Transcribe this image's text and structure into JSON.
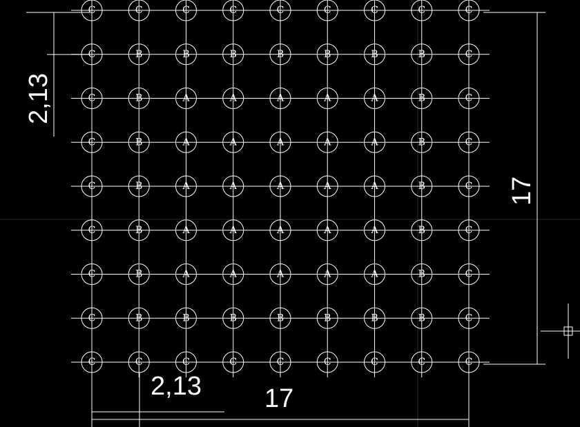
{
  "pile_grid": {
    "rows": [
      [
        "C",
        "C",
        "C",
        "C",
        "C",
        "C",
        "C",
        "C",
        "C"
      ],
      [
        "C",
        "B",
        "B",
        "B",
        "B",
        "B",
        "B",
        "B",
        "C"
      ],
      [
        "C",
        "B",
        "A",
        "A",
        "A",
        "A",
        "A",
        "B",
        "C"
      ],
      [
        "C",
        "B",
        "A",
        "A",
        "A",
        "A",
        "A",
        "B",
        "C"
      ],
      [
        "C",
        "B",
        "A",
        "A",
        "A",
        "A",
        "A",
        "B",
        "C"
      ],
      [
        "C",
        "B",
        "A",
        "A",
        "A",
        "A",
        "A",
        "B",
        "C"
      ],
      [
        "C",
        "B",
        "A",
        "A",
        "A",
        "A",
        "A",
        "B",
        "C"
      ],
      [
        "C",
        "B",
        "B",
        "B",
        "B",
        "B",
        "B",
        "B",
        "C"
      ],
      [
        "C",
        "C",
        "C",
        "C",
        "C",
        "C",
        "C",
        "C",
        "C"
      ]
    ]
  },
  "dimensions": {
    "spacing_vertical": "2,13",
    "spacing_horizontal": "2,13",
    "total_height": "17",
    "total_width": "17"
  },
  "colors": {
    "background": "#000000",
    "lines": "#ffffff"
  }
}
